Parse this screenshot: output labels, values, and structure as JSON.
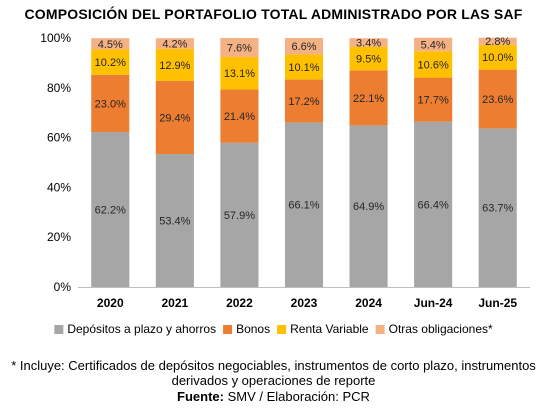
{
  "chart_data": {
    "type": "bar",
    "stacked": true,
    "title": "COMPOSICIÓN DEL PORTAFOLIO TOTAL ADMINISTRADO POR LAS SAF",
    "categories": [
      "2020",
      "2021",
      "2022",
      "2023",
      "2024",
      "Jun-24",
      "Jun-25"
    ],
    "ylim": [
      0,
      100
    ],
    "yticks": [
      "0%",
      "20%",
      "40%",
      "60%",
      "80%",
      "100%"
    ],
    "legend_position": "bottom",
    "grid": false,
    "series": [
      {
        "name": "Depósitos a plazo y ahorros",
        "color": "#a6a6a6",
        "values": [
          62.2,
          53.4,
          57.9,
          66.1,
          64.9,
          66.4,
          63.7
        ],
        "labels": [
          "62.2%",
          "53.4%",
          "57.9%",
          "66.1%",
          "64.9%",
          "66.4%",
          "63.7%"
        ]
      },
      {
        "name": "Bonos",
        "color": "#ed7d31",
        "values": [
          23.0,
          29.4,
          21.4,
          17.2,
          22.1,
          17.7,
          23.6
        ],
        "labels": [
          "23.0%",
          "29.4%",
          "21.4%",
          "17.2%",
          "22.1%",
          "17.7%",
          "23.6%"
        ]
      },
      {
        "name": "Renta Variable",
        "color": "#ffc000",
        "values": [
          10.2,
          12.9,
          13.1,
          10.1,
          9.5,
          10.6,
          10.0
        ],
        "labels": [
          "10.2%",
          "12.9%",
          "13.1%",
          "10.1%",
          "9.5%",
          "10.6%",
          "10.0%"
        ]
      },
      {
        "name": "Otras obligaciones*",
        "color": "#f4b183",
        "values": [
          4.5,
          4.2,
          7.6,
          6.6,
          3.4,
          5.4,
          2.8
        ],
        "labels": [
          "4.5%",
          "4.2%",
          "7.6%",
          "6.6%",
          "3.4%",
          "5.4%",
          "2.8%"
        ]
      }
    ]
  },
  "footnote": "* Incluye: Certificados de depósitos negociables, instrumentos de corto plazo, instrumentos derivados y operaciones de reporte",
  "source": {
    "label": "Fuente:",
    "value": "SMV / Elaboración: PCR"
  }
}
